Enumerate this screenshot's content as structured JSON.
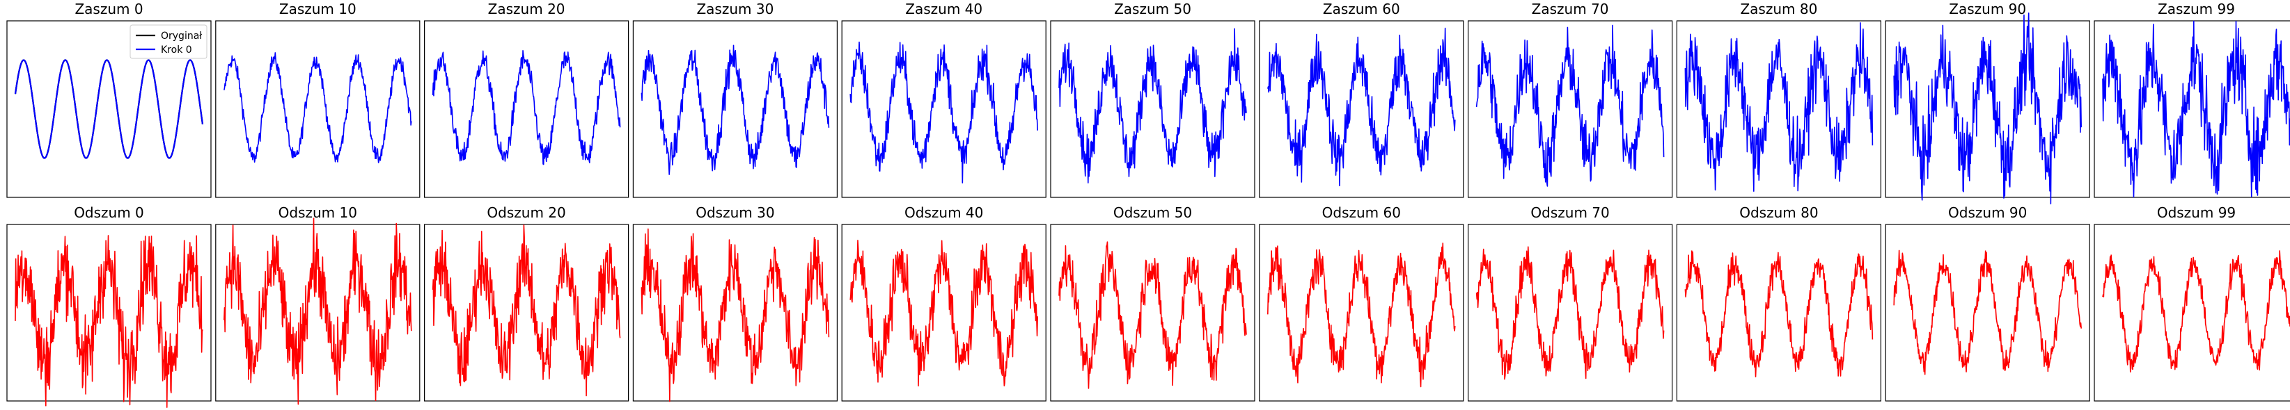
{
  "chart_data": {
    "type": "line",
    "layout": "grid of small multiples, 2 rows x 11 columns, no axis ticks",
    "rows": [
      {
        "series_color": "#0000ff",
        "panels": [
          {
            "title": "Zaszum 0",
            "noise": 0.0
          },
          {
            "title": "Zaszum 10",
            "noise": 0.12
          },
          {
            "title": "Zaszum 20",
            "noise": 0.18
          },
          {
            "title": "Zaszum 30",
            "noise": 0.24
          },
          {
            "title": "Zaszum 40",
            "noise": 0.3
          },
          {
            "title": "Zaszum 50",
            "noise": 0.36
          },
          {
            "title": "Zaszum 60",
            "noise": 0.42
          },
          {
            "title": "Zaszum 70",
            "noise": 0.48
          },
          {
            "title": "Zaszum 80",
            "noise": 0.54
          },
          {
            "title": "Zaszum 90",
            "noise": 0.6
          },
          {
            "title": "Zaszum 99",
            "noise": 0.66
          }
        ]
      },
      {
        "series_color": "#ff0000",
        "panels": [
          {
            "title": "Odszum 0",
            "noise": 0.66
          },
          {
            "title": "Odszum 10",
            "noise": 0.6
          },
          {
            "title": "Odszum 20",
            "noise": 0.54
          },
          {
            "title": "Odszum 30",
            "noise": 0.48
          },
          {
            "title": "Odszum 40",
            "noise": 0.42
          },
          {
            "title": "Odszum 50",
            "noise": 0.36
          },
          {
            "title": "Odszum 60",
            "noise": 0.32
          },
          {
            "title": "Odszum 70",
            "noise": 0.28
          },
          {
            "title": "Odszum 80",
            "noise": 0.25
          },
          {
            "title": "Odszum 90",
            "noise": 0.22
          },
          {
            "title": "Odszum 99",
            "noise": 0.2
          }
        ]
      }
    ],
    "signal": {
      "function": "sine",
      "cycles": 4.5,
      "amplitude": 1.0,
      "samples": 400
    },
    "ylim": [
      -1.8,
      1.8
    ],
    "legend": {
      "placement": "upper-right",
      "panel": 0,
      "entries": [
        {
          "label": "Oryginał",
          "color": "#000000"
        },
        {
          "label": "Krok 0",
          "color": "#0000ff"
        }
      ]
    },
    "grid": false,
    "ticks": false
  }
}
